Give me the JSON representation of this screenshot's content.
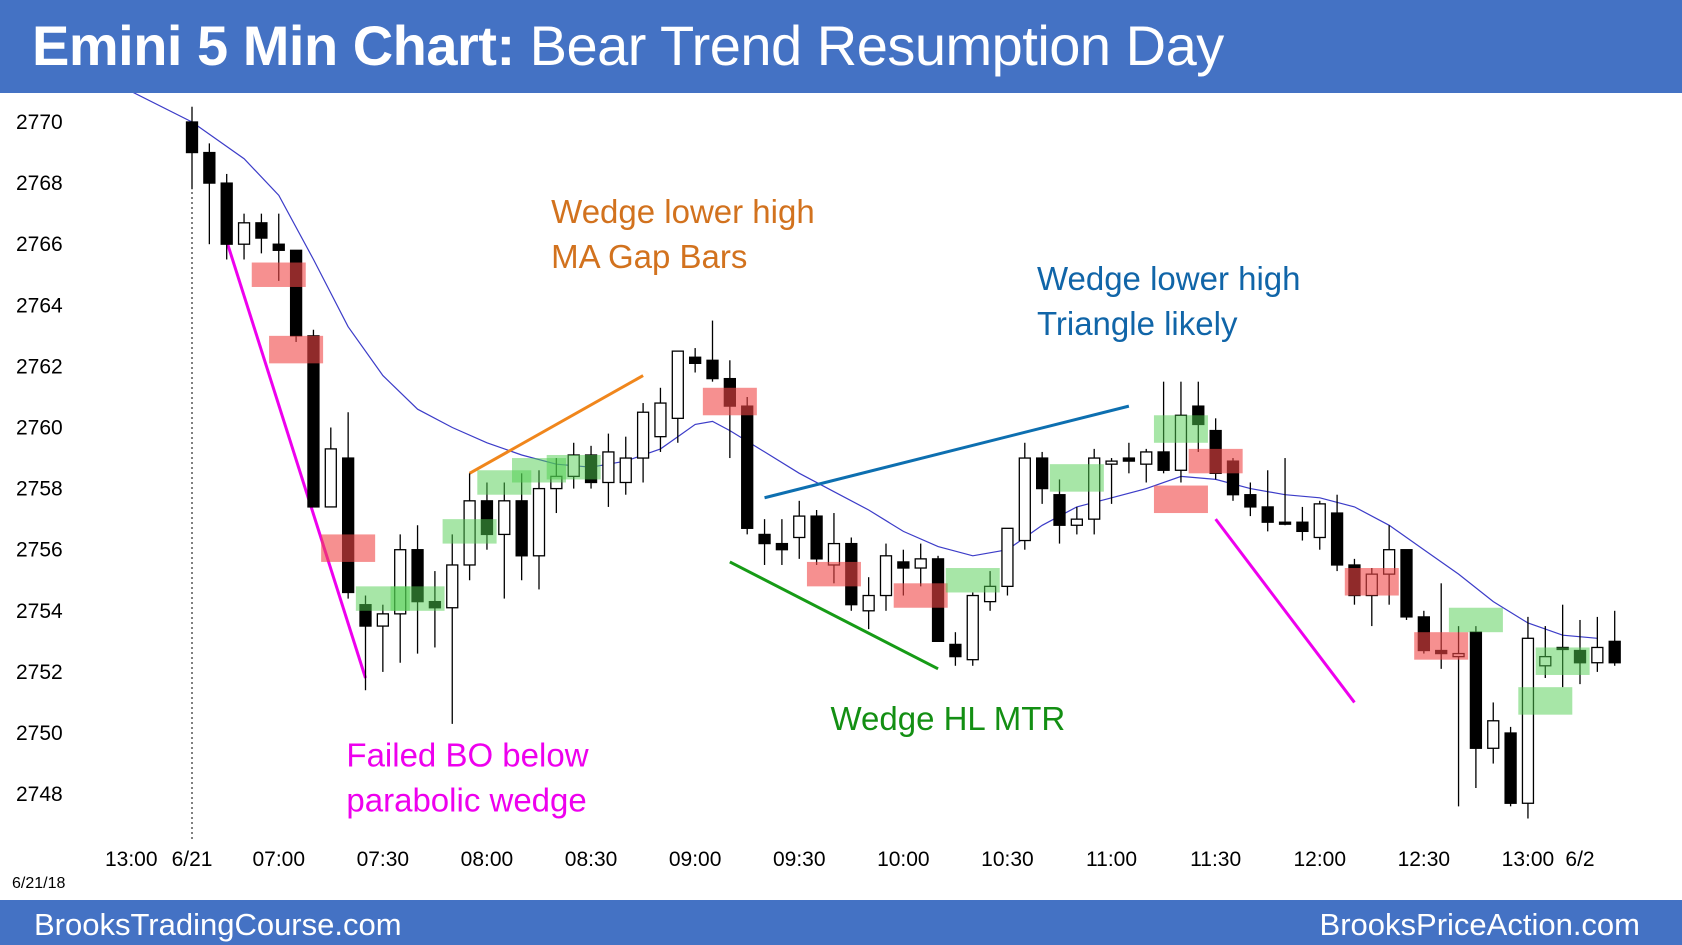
{
  "header": {
    "title_bold": "Emini 5 Min Chart:",
    "title_rest": "Bear Trend Resumption Day"
  },
  "footer": {
    "left": "BrooksTradingCourse.com",
    "right": "BrooksPriceAction.com"
  },
  "chart_data": {
    "type": "candlestick",
    "title": "Emini 5 Min Chart: Bear Trend Resumption Day",
    "date_stamp": "6/21/18",
    "ylim": [
      2746.5,
      2771.5
    ],
    "y_ticks": [
      2770,
      2768,
      2766,
      2764,
      2762,
      2760,
      2758,
      2756,
      2754,
      2752,
      2750,
      2748
    ],
    "x_tick_labels": [
      {
        "label": "13:00",
        "bar": -3.5
      },
      {
        "label": "6/21",
        "bar": 0
      },
      {
        "label": "07:00",
        "bar": 5
      },
      {
        "label": "07:30",
        "bar": 11
      },
      {
        "label": "08:00",
        "bar": 17
      },
      {
        "label": "08:30",
        "bar": 23
      },
      {
        "label": "09:00",
        "bar": 29
      },
      {
        "label": "09:30",
        "bar": 35
      },
      {
        "label": "10:00",
        "bar": 41
      },
      {
        "label": "10:30",
        "bar": 47
      },
      {
        "label": "11:00",
        "bar": 53
      },
      {
        "label": "11:30",
        "bar": 59
      },
      {
        "label": "12:00",
        "bar": 65
      },
      {
        "label": "12:30",
        "bar": 71
      },
      {
        "label": "13:00",
        "bar": 77
      },
      {
        "label": "6/2",
        "bar": 80
      }
    ],
    "session_start_bar": 0,
    "bars": [
      {
        "o": 2770.0,
        "h": 2770.5,
        "l": 2767.8,
        "c": 2769.0
      },
      {
        "o": 2769.0,
        "h": 2769.3,
        "l": 2766.0,
        "c": 2768.0
      },
      {
        "o": 2768.0,
        "h": 2768.3,
        "l": 2765.5,
        "c": 2766.0
      },
      {
        "o": 2766.0,
        "h": 2767.0,
        "l": 2765.5,
        "c": 2766.7
      },
      {
        "o": 2766.7,
        "h": 2767.0,
        "l": 2765.7,
        "c": 2766.2
      },
      {
        "o": 2766.0,
        "h": 2767.0,
        "l": 2764.8,
        "c": 2765.8
      },
      {
        "o": 2765.8,
        "h": 2765.8,
        "l": 2762.8,
        "c": 2763.0
      },
      {
        "o": 2763.0,
        "h": 2763.2,
        "l": 2757.4,
        "c": 2757.4
      },
      {
        "o": 2757.4,
        "h": 2760.0,
        "l": 2757.4,
        "c": 2759.3
      },
      {
        "o": 2759.0,
        "h": 2760.5,
        "l": 2754.4,
        "c": 2754.6
      },
      {
        "o": 2754.2,
        "h": 2754.5,
        "l": 2751.4,
        "c": 2753.5
      },
      {
        "o": 2753.5,
        "h": 2754.2,
        "l": 2752.0,
        "c": 2753.9
      },
      {
        "o": 2753.9,
        "h": 2756.5,
        "l": 2752.3,
        "c": 2756.0
      },
      {
        "o": 2756.0,
        "h": 2756.8,
        "l": 2752.6,
        "c": 2754.3
      },
      {
        "o": 2754.3,
        "h": 2755.3,
        "l": 2752.8,
        "c": 2754.1
      },
      {
        "o": 2754.1,
        "h": 2756.5,
        "l": 2750.3,
        "c": 2755.5
      },
      {
        "o": 2755.5,
        "h": 2758.5,
        "l": 2755.0,
        "c": 2757.6
      },
      {
        "o": 2757.6,
        "h": 2758.2,
        "l": 2756.0,
        "c": 2756.5
      },
      {
        "o": 2756.5,
        "h": 2758.2,
        "l": 2754.4,
        "c": 2757.6
      },
      {
        "o": 2757.6,
        "h": 2758.5,
        "l": 2755.0,
        "c": 2755.8
      },
      {
        "o": 2755.8,
        "h": 2758.6,
        "l": 2754.7,
        "c": 2758.0
      },
      {
        "o": 2758.0,
        "h": 2759.0,
        "l": 2757.2,
        "c": 2758.4
      },
      {
        "o": 2758.4,
        "h": 2759.5,
        "l": 2758.0,
        "c": 2759.1
      },
      {
        "o": 2759.1,
        "h": 2759.4,
        "l": 2758.0,
        "c": 2758.2
      },
      {
        "o": 2758.2,
        "h": 2759.8,
        "l": 2757.4,
        "c": 2759.2
      },
      {
        "o": 2758.2,
        "h": 2759.7,
        "l": 2757.8,
        "c": 2759.0
      },
      {
        "o": 2759.0,
        "h": 2760.8,
        "l": 2758.2,
        "c": 2760.5
      },
      {
        "o": 2759.7,
        "h": 2761.3,
        "l": 2759.2,
        "c": 2760.8
      },
      {
        "o": 2760.3,
        "h": 2762.5,
        "l": 2759.5,
        "c": 2762.5
      },
      {
        "o": 2762.3,
        "h": 2762.6,
        "l": 2761.8,
        "c": 2762.1
      },
      {
        "o": 2762.2,
        "h": 2763.5,
        "l": 2761.5,
        "c": 2761.6
      },
      {
        "o": 2761.6,
        "h": 2762.2,
        "l": 2759.0,
        "c": 2760.7
      },
      {
        "o": 2760.7,
        "h": 2761.0,
        "l": 2756.5,
        "c": 2756.7
      },
      {
        "o": 2756.5,
        "h": 2757.0,
        "l": 2755.5,
        "c": 2756.2
      },
      {
        "o": 2756.2,
        "h": 2757.0,
        "l": 2755.5,
        "c": 2756.0
      },
      {
        "o": 2756.4,
        "h": 2757.6,
        "l": 2755.7,
        "c": 2757.1
      },
      {
        "o": 2757.1,
        "h": 2757.3,
        "l": 2755.5,
        "c": 2755.7
      },
      {
        "o": 2755.5,
        "h": 2757.2,
        "l": 2754.9,
        "c": 2756.2
      },
      {
        "o": 2756.2,
        "h": 2756.4,
        "l": 2754.0,
        "c": 2754.2
      },
      {
        "o": 2754.0,
        "h": 2755.1,
        "l": 2753.4,
        "c": 2754.5
      },
      {
        "o": 2754.5,
        "h": 2756.2,
        "l": 2754.0,
        "c": 2755.8
      },
      {
        "o": 2755.6,
        "h": 2756.0,
        "l": 2754.5,
        "c": 2755.4
      },
      {
        "o": 2755.4,
        "h": 2756.2,
        "l": 2754.8,
        "c": 2755.7
      },
      {
        "o": 2755.7,
        "h": 2755.8,
        "l": 2753.0,
        "c": 2753.0
      },
      {
        "o": 2752.9,
        "h": 2753.3,
        "l": 2752.2,
        "c": 2752.5
      },
      {
        "o": 2752.4,
        "h": 2754.6,
        "l": 2752.2,
        "c": 2754.5
      },
      {
        "o": 2754.3,
        "h": 2755.3,
        "l": 2754.0,
        "c": 2754.8
      },
      {
        "o": 2754.8,
        "h": 2756.5,
        "l": 2754.5,
        "c": 2756.7
      },
      {
        "o": 2756.3,
        "h": 2759.5,
        "l": 2756.0,
        "c": 2759.0
      },
      {
        "o": 2759.0,
        "h": 2759.2,
        "l": 2757.5,
        "c": 2758.0
      },
      {
        "o": 2757.8,
        "h": 2758.3,
        "l": 2756.2,
        "c": 2756.8
      },
      {
        "o": 2756.8,
        "h": 2757.4,
        "l": 2756.5,
        "c": 2757.0
      },
      {
        "o": 2757.0,
        "h": 2759.3,
        "l": 2756.5,
        "c": 2759.0
      },
      {
        "o": 2758.8,
        "h": 2759.0,
        "l": 2757.5,
        "c": 2758.9
      },
      {
        "o": 2759.0,
        "h": 2759.5,
        "l": 2758.5,
        "c": 2758.9
      },
      {
        "o": 2758.8,
        "h": 2759.3,
        "l": 2758.2,
        "c": 2759.2
      },
      {
        "o": 2759.2,
        "h": 2761.5,
        "l": 2758.5,
        "c": 2758.6
      },
      {
        "o": 2758.6,
        "h": 2761.5,
        "l": 2758.2,
        "c": 2760.4
      },
      {
        "o": 2760.7,
        "h": 2761.5,
        "l": 2759.2,
        "c": 2760.1
      },
      {
        "o": 2759.9,
        "h": 2760.3,
        "l": 2758.3,
        "c": 2758.5
      },
      {
        "o": 2758.9,
        "h": 2759.0,
        "l": 2757.6,
        "c": 2757.8
      },
      {
        "o": 2757.8,
        "h": 2758.2,
        "l": 2757.1,
        "c": 2757.4
      },
      {
        "o": 2757.4,
        "h": 2758.6,
        "l": 2756.6,
        "c": 2756.9
      },
      {
        "o": 2756.9,
        "h": 2759.0,
        "l": 2756.8,
        "c": 2756.9
      },
      {
        "o": 2756.9,
        "h": 2757.4,
        "l": 2756.3,
        "c": 2756.6
      },
      {
        "o": 2756.4,
        "h": 2757.6,
        "l": 2756.0,
        "c": 2757.5
      },
      {
        "o": 2757.2,
        "h": 2757.8,
        "l": 2755.3,
        "c": 2755.5
      },
      {
        "o": 2755.5,
        "h": 2755.7,
        "l": 2754.2,
        "c": 2754.5
      },
      {
        "o": 2754.5,
        "h": 2755.4,
        "l": 2753.5,
        "c": 2755.2
      },
      {
        "o": 2755.2,
        "h": 2756.8,
        "l": 2754.2,
        "c": 2756.0
      },
      {
        "o": 2756.0,
        "h": 2756.0,
        "l": 2753.7,
        "c": 2753.8
      },
      {
        "o": 2753.8,
        "h": 2754.0,
        "l": 2752.6,
        "c": 2752.7
      },
      {
        "o": 2752.7,
        "h": 2754.9,
        "l": 2752.1,
        "c": 2752.6
      },
      {
        "o": 2752.5,
        "h": 2753.5,
        "l": 2747.6,
        "c": 2752.6
      },
      {
        "o": 2753.3,
        "h": 2753.5,
        "l": 2748.2,
        "c": 2749.5
      },
      {
        "o": 2749.5,
        "h": 2751.0,
        "l": 2749.0,
        "c": 2750.4
      },
      {
        "o": 2750.0,
        "h": 2750.2,
        "l": 2747.6,
        "c": 2747.7
      },
      {
        "o": 2747.7,
        "h": 2753.8,
        "l": 2747.2,
        "c": 2753.1
      },
      {
        "o": 2752.2,
        "h": 2753.5,
        "l": 2751.8,
        "c": 2752.5
      },
      {
        "o": 2752.8,
        "h": 2754.2,
        "l": 2751.5,
        "c": 2752.8
      },
      {
        "o": 2752.7,
        "h": 2753.7,
        "l": 2751.6,
        "c": 2752.3
      },
      {
        "o": 2752.3,
        "h": 2753.8,
        "l": 2752.0,
        "c": 2752.8
      },
      {
        "o": 2753.0,
        "h": 2754.0,
        "l": 2752.2,
        "c": 2752.3
      }
    ],
    "ema": [
      [
        -3.5,
        2771.0
      ],
      [
        0,
        2770.0
      ],
      [
        3,
        2768.8
      ],
      [
        5,
        2767.6
      ],
      [
        7,
        2765.5
      ],
      [
        9,
        2763.3
      ],
      [
        11,
        2761.7
      ],
      [
        13,
        2760.6
      ],
      [
        15,
        2760.0
      ],
      [
        17,
        2759.5
      ],
      [
        19,
        2759.1
      ],
      [
        21,
        2758.8
      ],
      [
        23,
        2758.7
      ],
      [
        25,
        2758.9
      ],
      [
        27,
        2759.3
      ],
      [
        28,
        2759.7
      ],
      [
        29,
        2760.1
      ],
      [
        30,
        2760.2
      ],
      [
        31,
        2759.9
      ],
      [
        33,
        2759.2
      ],
      [
        35,
        2758.5
      ],
      [
        37,
        2757.9
      ],
      [
        39,
        2757.3
      ],
      [
        41,
        2756.6
      ],
      [
        43,
        2756.1
      ],
      [
        45,
        2755.8
      ],
      [
        47,
        2756.0
      ],
      [
        49,
        2756.8
      ],
      [
        51,
        2757.4
      ],
      [
        53,
        2757.7
      ],
      [
        55,
        2758.0
      ],
      [
        57,
        2758.4
      ],
      [
        59,
        2758.3
      ],
      [
        61,
        2758.0
      ],
      [
        63,
        2757.8
      ],
      [
        65,
        2757.7
      ],
      [
        67,
        2757.4
      ],
      [
        69,
        2756.8
      ],
      [
        71,
        2756.0
      ],
      [
        73,
        2755.2
      ],
      [
        75,
        2754.3
      ],
      [
        77,
        2753.6
      ],
      [
        79,
        2753.2
      ],
      [
        81,
        2753.1
      ]
    ],
    "highlights": [
      {
        "bar": 5,
        "y0": 2764.6,
        "y1": 2765.4,
        "color": "red"
      },
      {
        "bar": 6,
        "y0": 2762.1,
        "y1": 2763.0,
        "color": "red"
      },
      {
        "bar": 9,
        "y0": 2755.6,
        "y1": 2756.5,
        "color": "red"
      },
      {
        "bar": 11,
        "y0": 2754.0,
        "y1": 2754.8,
        "color": "green"
      },
      {
        "bar": 13,
        "y0": 2754.0,
        "y1": 2754.8,
        "color": "green"
      },
      {
        "bar": 16,
        "y0": 2756.2,
        "y1": 2757.0,
        "color": "green"
      },
      {
        "bar": 18,
        "y0": 2757.8,
        "y1": 2758.6,
        "color": "green"
      },
      {
        "bar": 20,
        "y0": 2758.2,
        "y1": 2759.0,
        "color": "green"
      },
      {
        "bar": 22,
        "y0": 2758.3,
        "y1": 2759.1,
        "color": "green"
      },
      {
        "bar": 31,
        "y0": 2760.4,
        "y1": 2761.3,
        "color": "red"
      },
      {
        "bar": 37,
        "y0": 2754.8,
        "y1": 2755.6,
        "color": "red"
      },
      {
        "bar": 42,
        "y0": 2754.1,
        "y1": 2754.9,
        "color": "red"
      },
      {
        "bar": 45,
        "y0": 2754.6,
        "y1": 2755.4,
        "color": "green"
      },
      {
        "bar": 51,
        "y0": 2757.9,
        "y1": 2758.8,
        "color": "green"
      },
      {
        "bar": 57,
        "y0": 2759.5,
        "y1": 2760.4,
        "color": "green"
      },
      {
        "bar": 57,
        "y0": 2757.2,
        "y1": 2758.1,
        "color": "red"
      },
      {
        "bar": 59,
        "y0": 2758.5,
        "y1": 2759.3,
        "color": "red"
      },
      {
        "bar": 68,
        "y0": 2754.5,
        "y1": 2755.4,
        "color": "red"
      },
      {
        "bar": 72,
        "y0": 2752.4,
        "y1": 2753.3,
        "color": "red"
      },
      {
        "bar": 74,
        "y0": 2753.3,
        "y1": 2754.1,
        "color": "green"
      },
      {
        "bar": 78,
        "y0": 2750.6,
        "y1": 2751.5,
        "color": "green"
      },
      {
        "bar": 79,
        "y0": 2751.9,
        "y1": 2752.8,
        "color": "green"
      }
    ],
    "trendlines": [
      {
        "from": [
          2,
          2766.1
        ],
        "to": [
          10,
          2751.8
        ],
        "color": "#ee00ee"
      },
      {
        "from": [
          16,
          2758.5
        ],
        "to": [
          26,
          2761.7
        ],
        "color": "#f0861c"
      },
      {
        "from": [
          33,
          2757.7
        ],
        "to": [
          54,
          2760.7
        ],
        "color": "#0d6fb0"
      },
      {
        "from": [
          31,
          2755.6
        ],
        "to": [
          43,
          2752.1
        ],
        "color": "#169b16"
      },
      {
        "from": [
          59,
          2757.0
        ],
        "to": [
          67,
          2751.0
        ],
        "color": "#ee00ee"
      }
    ],
    "annotations": [
      {
        "lines": [
          "Wedge lower high",
          "MA Gap Bars"
        ],
        "color": "#d2721e",
        "bar": 20.7,
        "y": 2766.7
      },
      {
        "lines": [
          "Wedge lower high",
          "Triangle likely"
        ],
        "color": "#1065a8",
        "bar": 48.7,
        "y": 2764.5
      },
      {
        "lines": [
          "Wedge HL MTR"
        ],
        "color": "#138f13",
        "bar": 36.8,
        "y": 2750.1
      },
      {
        "lines": [
          "Failed BO below",
          "parabolic wedge"
        ],
        "color": "#ee00ee",
        "bar": 8.9,
        "y": 2748.9
      }
    ]
  }
}
